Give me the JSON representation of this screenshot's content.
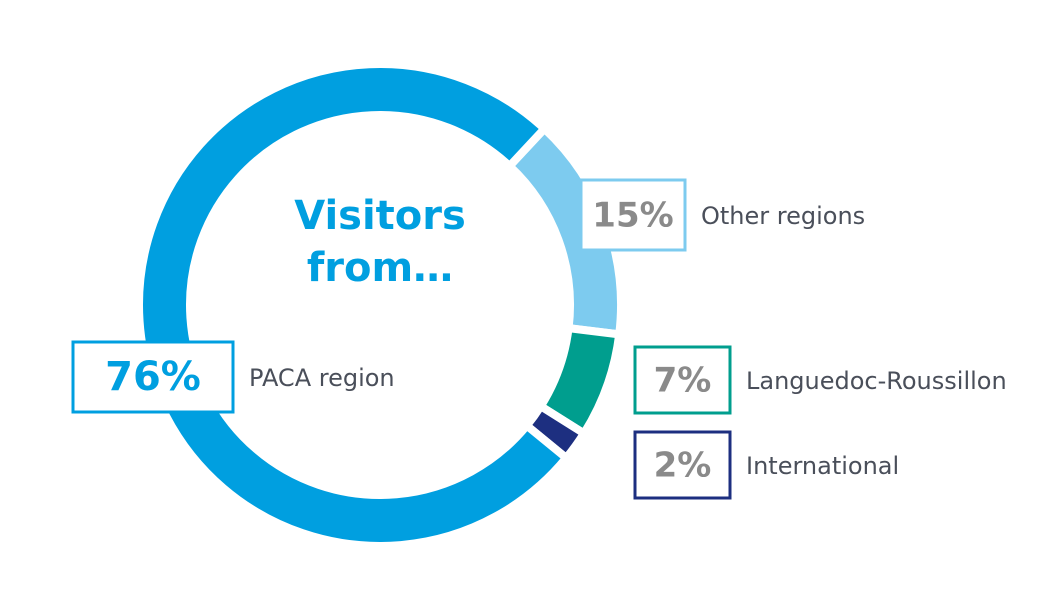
{
  "chart_data": {
    "type": "donut",
    "title": "Visitors from…",
    "series": [
      {
        "name": "Other regions",
        "color": "#7dcbef",
        "values": [
          15
        ],
        "value_labels": [
          "15%"
        ]
      },
      {
        "name": "Languedoc-Roussillon",
        "color": "#009e8e",
        "values": [
          7
        ],
        "value_labels": [
          "7%"
        ]
      },
      {
        "name": "International",
        "color": "#1d2f80",
        "values": [
          2
        ],
        "value_labels": [
          "2%"
        ]
      },
      {
        "name": "PACA region",
        "color": "#009fe0",
        "values": [
          76
        ],
        "value_labels": [
          "76%"
        ]
      }
    ]
  }
}
